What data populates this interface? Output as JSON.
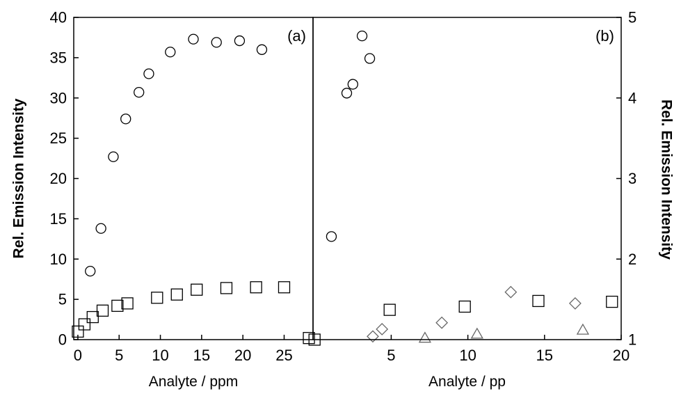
{
  "chart_data": [
    {
      "panel_label": "(a)",
      "type": "scatter",
      "xlabel": "Analyte / ppm",
      "ylabel": "Rel. Emission Intensity",
      "xlim": [
        -0.5,
        28.5
      ],
      "ylim": [
        0,
        40
      ],
      "x_ticks": [
        "0",
        "5",
        "10",
        "15",
        "20",
        "25"
      ],
      "x_tick_values": [
        0,
        5,
        10,
        15,
        20,
        25
      ],
      "y_ticks": [
        "0",
        "5",
        "10",
        "15",
        "20",
        "25",
        "30",
        "35",
        "40"
      ],
      "y_tick_values": [
        0,
        5,
        10,
        15,
        20,
        25,
        30,
        35,
        40
      ],
      "grid": false,
      "series": [
        {
          "marker": "circle",
          "points": [
            [
              1.5,
              8.5
            ],
            [
              2.8,
              13.8
            ],
            [
              4.3,
              22.7
            ],
            [
              5.8,
              27.4
            ],
            [
              7.4,
              30.7
            ],
            [
              8.6,
              33.0
            ],
            [
              11.2,
              35.7
            ],
            [
              14.0,
              37.3
            ],
            [
              16.8,
              36.9
            ],
            [
              19.6,
              37.1
            ],
            [
              22.3,
              36.0
            ]
          ]
        },
        {
          "marker": "square",
          "points": [
            [
              0,
              1.0
            ],
            [
              0.8,
              1.9
            ],
            [
              1.8,
              2.8
            ],
            [
              3.0,
              3.6
            ],
            [
              4.8,
              4.2
            ],
            [
              6.0,
              4.5
            ],
            [
              9.6,
              5.2
            ],
            [
              12.0,
              5.6
            ],
            [
              14.4,
              6.2
            ],
            [
              18.0,
              6.4
            ],
            [
              21.6,
              6.5
            ],
            [
              25.0,
              6.5
            ],
            [
              28.0,
              0.2
            ]
          ]
        }
      ]
    },
    {
      "panel_label": "(b)",
      "type": "scatter",
      "xlabel": "Analyte / pp",
      "ylabel": "Rel. Emission Intensity",
      "xlim": [
        -0.1,
        20
      ],
      "ylim": [
        1,
        5
      ],
      "x_ticks": [
        "5",
        "10",
        "15",
        "20"
      ],
      "x_tick_values": [
        5,
        10,
        15,
        20
      ],
      "y_ticks": [
        "1",
        "2",
        "3",
        "4",
        "5"
      ],
      "y_tick_values": [
        1,
        2,
        3,
        4,
        5
      ],
      "y_axis_side": "right",
      "grid": false,
      "series": [
        {
          "marker": "circle",
          "points": [
            [
              1.1,
              2.28
            ],
            [
              2.1,
              4.06
            ],
            [
              2.5,
              4.17
            ],
            [
              3.1,
              4.77
            ],
            [
              3.6,
              4.49
            ]
          ]
        },
        {
          "marker": "square",
          "points": [
            [
              0,
              1.0
            ],
            [
              4.9,
              1.37
            ],
            [
              9.8,
              1.41
            ],
            [
              14.6,
              1.48
            ],
            [
              19.4,
              1.47
            ]
          ]
        },
        {
          "marker": "diamond",
          "points": [
            [
              3.8,
              1.04
            ],
            [
              4.4,
              1.13
            ],
            [
              8.3,
              1.21
            ],
            [
              12.8,
              1.59
            ],
            [
              17.0,
              1.45
            ]
          ]
        },
        {
          "marker": "triangle",
          "points": [
            [
              7.2,
              1.02
            ],
            [
              10.6,
              1.07
            ],
            [
              17.5,
              1.12
            ]
          ]
        }
      ]
    }
  ]
}
